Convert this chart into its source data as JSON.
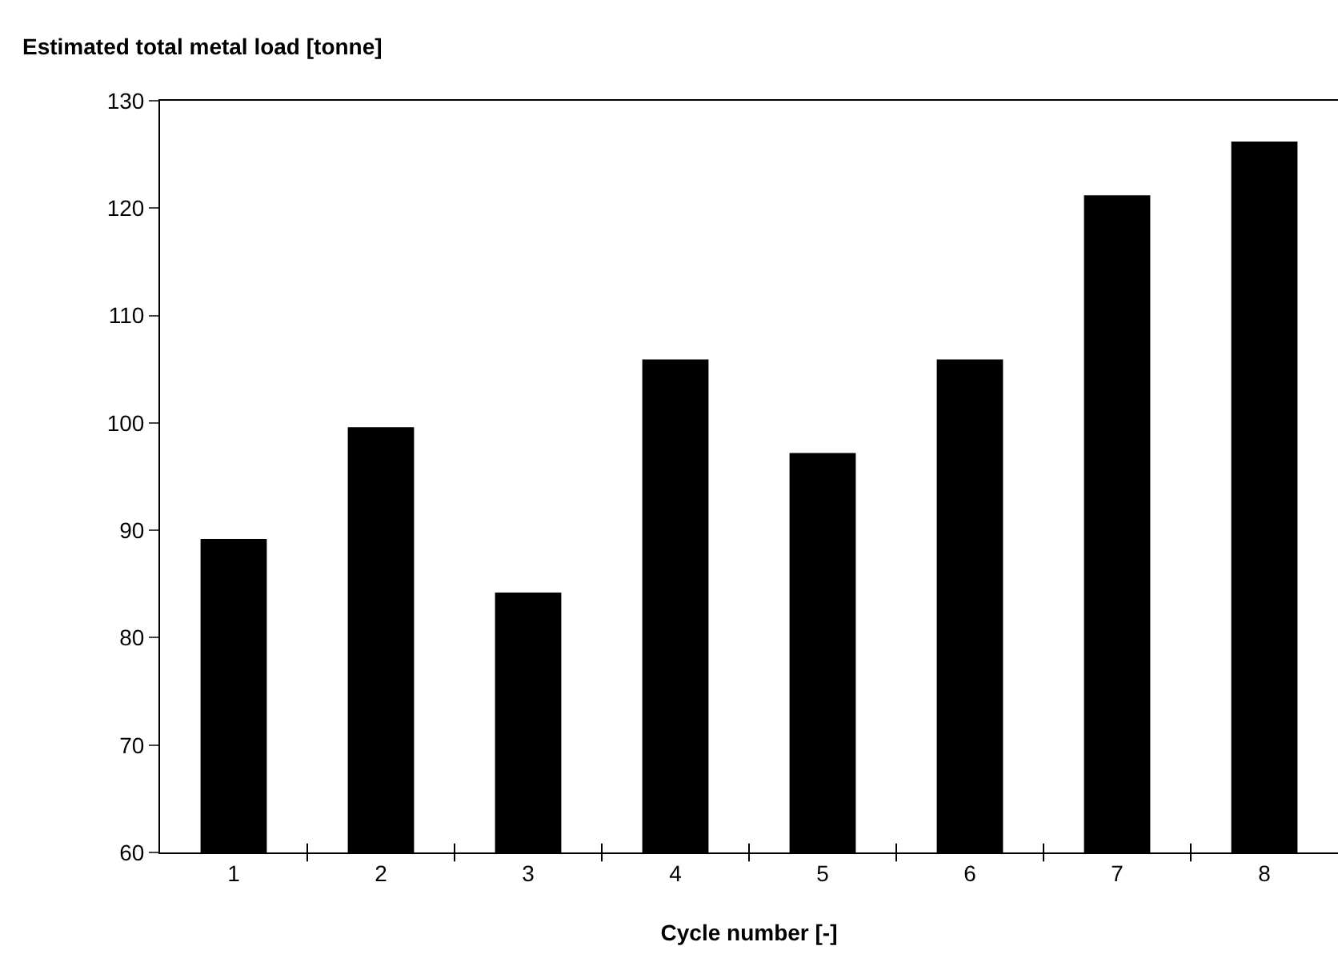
{
  "chart_data": {
    "type": "bar",
    "ylabel": "Estimated total metal load [tonne]",
    "xlabel": "Cycle number [-]",
    "categories": [
      "1",
      "2",
      "3",
      "4",
      "5",
      "6",
      "7",
      "8"
    ],
    "values": [
      89.2,
      99.6,
      84.2,
      105.9,
      97.2,
      105.9,
      121.2,
      126.2
    ],
    "color": "#000000",
    "ylim": [
      60,
      130
    ],
    "yticks": [
      60,
      70,
      80,
      90,
      100,
      110,
      120,
      130
    ]
  }
}
